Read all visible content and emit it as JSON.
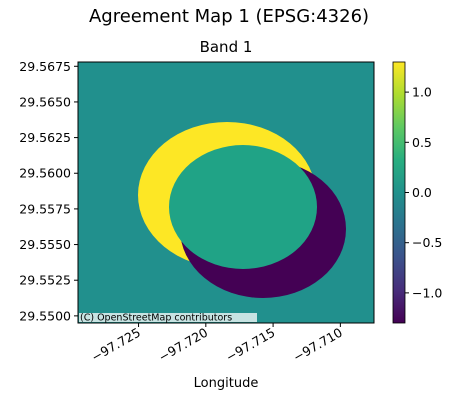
{
  "figure_title": "Agreement Map 1 (EPSG:4326)",
  "axes_title": "Band 1",
  "x_label": "Longitude",
  "attribution": "(C) OpenStreetMap contributors",
  "colors": {
    "background": "#21908d",
    "inner": "#20a386",
    "crescent_top": "#fde725",
    "crescent_bottom": "#440154"
  },
  "chart_data": {
    "type": "heatmap",
    "title": "Band 1",
    "xlabel": "Longitude",
    "ylabel": "",
    "xlim": [
      -97.7295,
      -97.7075
    ],
    "ylim": [
      29.5495,
      29.5678
    ],
    "x_ticks": [
      -97.725,
      -97.72,
      -97.715,
      -97.71
    ],
    "x_tick_labels": [
      "−97.725",
      "−97.720",
      "−97.715",
      "−97.710"
    ],
    "y_ticks": [
      29.55,
      29.5525,
      29.555,
      29.5575,
      29.56,
      29.5625,
      29.565,
      29.5675
    ],
    "y_tick_labels": [
      "29.5500",
      "29.5525",
      "29.5550",
      "29.5575",
      "29.5600",
      "29.5625",
      "29.5650",
      "29.5675"
    ],
    "colorbar": {
      "colormap": "viridis",
      "range": [
        -1.3,
        1.3
      ],
      "ticks": [
        1.0,
        0.5,
        0.0,
        -0.5,
        -1.0
      ],
      "tick_labels": [
        "1.0",
        "0.5",
        "0.0",
        "−0.5",
        "−1.0"
      ]
    },
    "regions": [
      {
        "name": "background",
        "value": 0.0
      },
      {
        "name": "overlap",
        "value": 0.0
      },
      {
        "name": "upper-left crescent",
        "value": 1.0
      },
      {
        "name": "lower-right crescent",
        "value": -1.0
      }
    ]
  }
}
